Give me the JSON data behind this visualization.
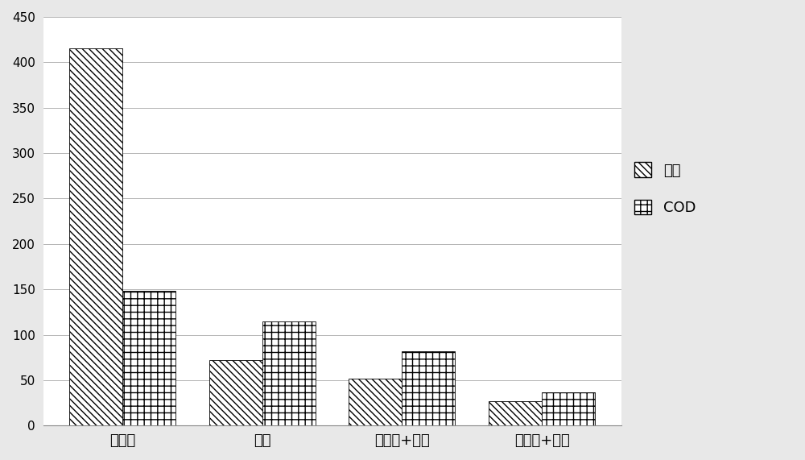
{
  "categories": [
    "活性炭",
    "臭氧",
    "活性炭+臭氧",
    "催化剂+臭氧"
  ],
  "series": [
    {
      "name": "色度",
      "values": [
        415,
        72,
        52,
        27
      ],
      "hatch": "\\\\\\\\"
    },
    {
      "name": "COD",
      "values": [
        148,
        115,
        82,
        37
      ],
      "hatch": "++"
    }
  ],
  "ylim": [
    0,
    450
  ],
  "yticks": [
    0,
    50,
    100,
    150,
    200,
    250,
    300,
    350,
    400,
    450
  ],
  "bar_width": 0.38,
  "bar_color": "white",
  "bar_edgecolor": "black",
  "background_color": "#e8e8e8",
  "plot_bg_color": "#ffffff",
  "title": "",
  "xlabel": "",
  "ylabel": ""
}
